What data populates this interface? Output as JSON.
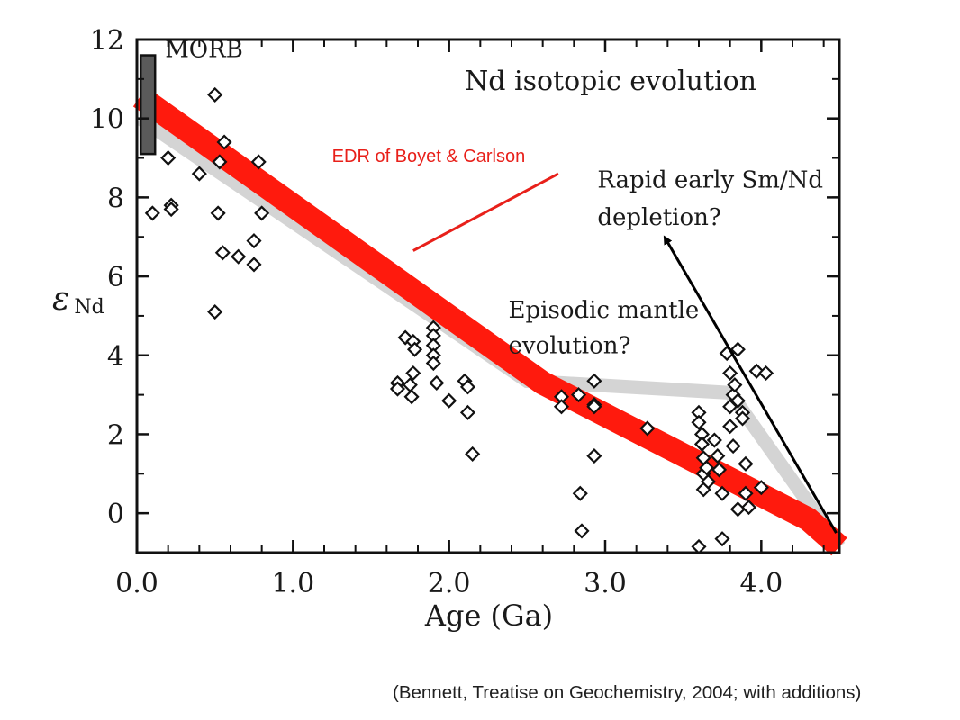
{
  "chart_data": {
    "type": "scatter",
    "title": "Nd isotopic evolution",
    "xlabel": "Age (Ga)",
    "ylabel_main": "ε",
    "ylabel_sub": "Nd",
    "xlim": [
      0,
      4.5
    ],
    "ylim": [
      -1,
      12
    ],
    "xticks": [
      {
        "value": 0,
        "label": "0.0"
      },
      {
        "value": 1,
        "label": "1.0"
      },
      {
        "value": 2,
        "label": "2.0"
      },
      {
        "value": 3,
        "label": "3.0"
      },
      {
        "value": 4,
        "label": "4.0"
      }
    ],
    "yticks": [
      {
        "value": 0,
        "label": "0"
      },
      {
        "value": 2,
        "label": "2"
      },
      {
        "value": 4,
        "label": "4"
      },
      {
        "value": 6,
        "label": "6"
      },
      {
        "value": 8,
        "label": "8"
      },
      {
        "value": 10,
        "label": "10"
      },
      {
        "value": 12,
        "label": "12"
      }
    ],
    "x_minor_step": 0.2,
    "y_minor_step": 1,
    "grid": false,
    "morb_bar": {
      "label": "MORB",
      "x": 0.03,
      "y_range": [
        9.1,
        11.6
      ],
      "color": "#5a5a5a"
    },
    "bands": [
      {
        "name": "EDR of Boyet & Carlson",
        "color": "#ff1a0d",
        "points": [
          [
            0.02,
            10.55
          ],
          [
            2.6,
            3.3
          ],
          [
            4.3,
            -0.15
          ],
          [
            4.5,
            -0.85
          ]
        ],
        "width_eps": 0.6
      },
      {
        "color": "#d4d4d4",
        "points": [
          [
            0.02,
            10.0
          ],
          [
            2.5,
            3.35
          ],
          [
            3.8,
            3.05
          ],
          [
            4.5,
            -0.85
          ]
        ],
        "width_eps": 0.35
      }
    ],
    "samples": [
      [
        0.1,
        7.6
      ],
      [
        0.2,
        9.0
      ],
      [
        0.22,
        7.8
      ],
      [
        0.22,
        7.7
      ],
      [
        0.4,
        8.6
      ],
      [
        0.5,
        10.6
      ],
      [
        0.5,
        5.1
      ],
      [
        0.52,
        7.6
      ],
      [
        0.53,
        8.9
      ],
      [
        0.55,
        6.6
      ],
      [
        0.56,
        9.4
      ],
      [
        0.65,
        6.5
      ],
      [
        0.75,
        6.9
      ],
      [
        0.75,
        6.3
      ],
      [
        0.78,
        8.9
      ],
      [
        0.8,
        7.6
      ],
      [
        1.67,
        3.3
      ],
      [
        1.67,
        3.15
      ],
      [
        1.72,
        4.45
      ],
      [
        1.75,
        3.25
      ],
      [
        1.76,
        2.95
      ],
      [
        1.77,
        3.55
      ],
      [
        1.77,
        4.35
      ],
      [
        1.78,
        4.15
      ],
      [
        1.9,
        4.7
      ],
      [
        1.9,
        4.5
      ],
      [
        1.9,
        4.25
      ],
      [
        1.9,
        4.0
      ],
      [
        1.9,
        3.8
      ],
      [
        1.92,
        3.3
      ],
      [
        2.0,
        2.85
      ],
      [
        2.1,
        3.35
      ],
      [
        2.12,
        2.55
      ],
      [
        2.12,
        3.2
      ],
      [
        2.15,
        1.5
      ],
      [
        2.72,
        2.95
      ],
      [
        2.72,
        2.7
      ],
      [
        2.83,
        3.0
      ],
      [
        2.84,
        0.5
      ],
      [
        2.85,
        -0.45
      ],
      [
        2.93,
        2.75
      ],
      [
        2.93,
        2.7
      ],
      [
        2.93,
        3.35
      ],
      [
        2.93,
        1.45
      ],
      [
        3.27,
        2.15
      ],
      [
        3.6,
        2.55
      ],
      [
        3.6,
        2.3
      ],
      [
        3.62,
        2.0
      ],
      [
        3.62,
        1.75
      ],
      [
        3.63,
        1.4
      ],
      [
        3.63,
        1.0
      ],
      [
        3.63,
        0.6
      ],
      [
        3.6,
        -0.85
      ],
      [
        3.65,
        1.15
      ],
      [
        3.66,
        0.8
      ],
      [
        3.7,
        1.85
      ],
      [
        3.72,
        1.45
      ],
      [
        3.73,
        1.1
      ],
      [
        3.75,
        0.5
      ],
      [
        3.75,
        -0.65
      ],
      [
        3.78,
        4.05
      ],
      [
        3.8,
        3.55
      ],
      [
        3.8,
        2.7
      ],
      [
        3.8,
        2.2
      ],
      [
        3.82,
        1.7
      ],
      [
        3.82,
        3.0
      ],
      [
        3.83,
        3.25
      ],
      [
        3.85,
        4.15
      ],
      [
        3.85,
        2.85
      ],
      [
        3.85,
        0.1
      ],
      [
        3.88,
        2.55
      ],
      [
        3.88,
        2.4
      ],
      [
        3.9,
        1.25
      ],
      [
        3.9,
        0.5
      ],
      [
        3.92,
        0.15
      ],
      [
        3.97,
        3.6
      ],
      [
        4.0,
        0.65
      ],
      [
        4.03,
        3.55
      ]
    ],
    "annotations": [
      {
        "text": "MORB",
        "x": 0.18,
        "y": 11.55
      },
      {
        "text": "EDR of Boyet & Carlson",
        "x": 1.25,
        "y": 8.9,
        "color": "#e8201a"
      },
      {
        "text": "Rapid early Sm/Nd",
        "x": 2.95,
        "y": 8.25
      },
      {
        "text": "depletion?",
        "x": 2.95,
        "y": 7.3
      },
      {
        "text": "Episodic mantle",
        "x": 2.38,
        "y": 4.95
      },
      {
        "text": "evolution?",
        "x": 2.38,
        "y": 4.05
      }
    ],
    "edr_pointer": {
      "from": [
        2.7,
        8.6
      ],
      "to": [
        1.77,
        6.65
      ],
      "color": "#e8201a"
    },
    "arrow": {
      "from": [
        4.48,
        -0.5
      ],
      "to": [
        3.38,
        7.0
      ],
      "color": "#000000"
    }
  },
  "caption": "(Bennett, Treatise on Geochemistry, 2004; with additions)"
}
